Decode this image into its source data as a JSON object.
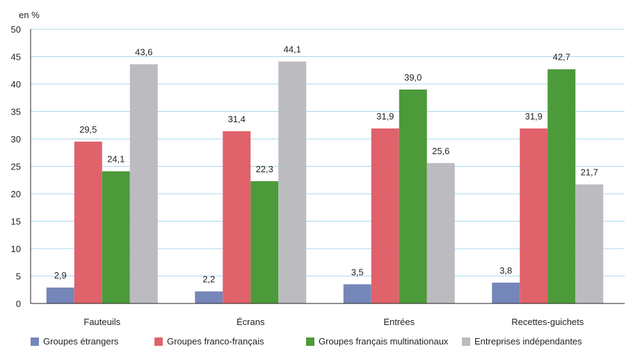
{
  "chart_data": {
    "type": "bar",
    "ylabel": "en %",
    "ylim": [
      0,
      50
    ],
    "yticks": [
      0,
      5,
      10,
      15,
      20,
      25,
      30,
      35,
      40,
      45,
      50
    ],
    "grid": true,
    "legend_position": "bottom",
    "categories": [
      "Fauteuils",
      "Écrans",
      "Entrées",
      "Recettes-guichets"
    ],
    "series": [
      {
        "name": "Groupes étrangers",
        "color": "#7586b9",
        "values": [
          2.9,
          2.2,
          3.5,
          3.8
        ],
        "labels": [
          "2,9",
          "2,2",
          "3,5",
          "3,8"
        ]
      },
      {
        "name": "Groupes franco-français",
        "color": "#e0626a",
        "values": [
          29.5,
          31.4,
          31.9,
          31.9
        ],
        "labels": [
          "29,5",
          "31,4",
          "31,9",
          "31,9"
        ]
      },
      {
        "name": "Groupes français multinationaux",
        "color": "#4c9a3a",
        "values": [
          24.1,
          22.3,
          39.0,
          42.7
        ],
        "labels": [
          "24,1",
          "22,3",
          "39,0",
          "42,7"
        ]
      },
      {
        "name": "Entreprises indépendantes",
        "color": "#bcbcc0",
        "values": [
          43.6,
          44.1,
          25.6,
          21.7
        ],
        "labels": [
          "43,6",
          "44,1",
          "25,6",
          "21,7"
        ]
      }
    ],
    "gridline_color": "#a8d8ee",
    "axis_color": "#222222"
  }
}
